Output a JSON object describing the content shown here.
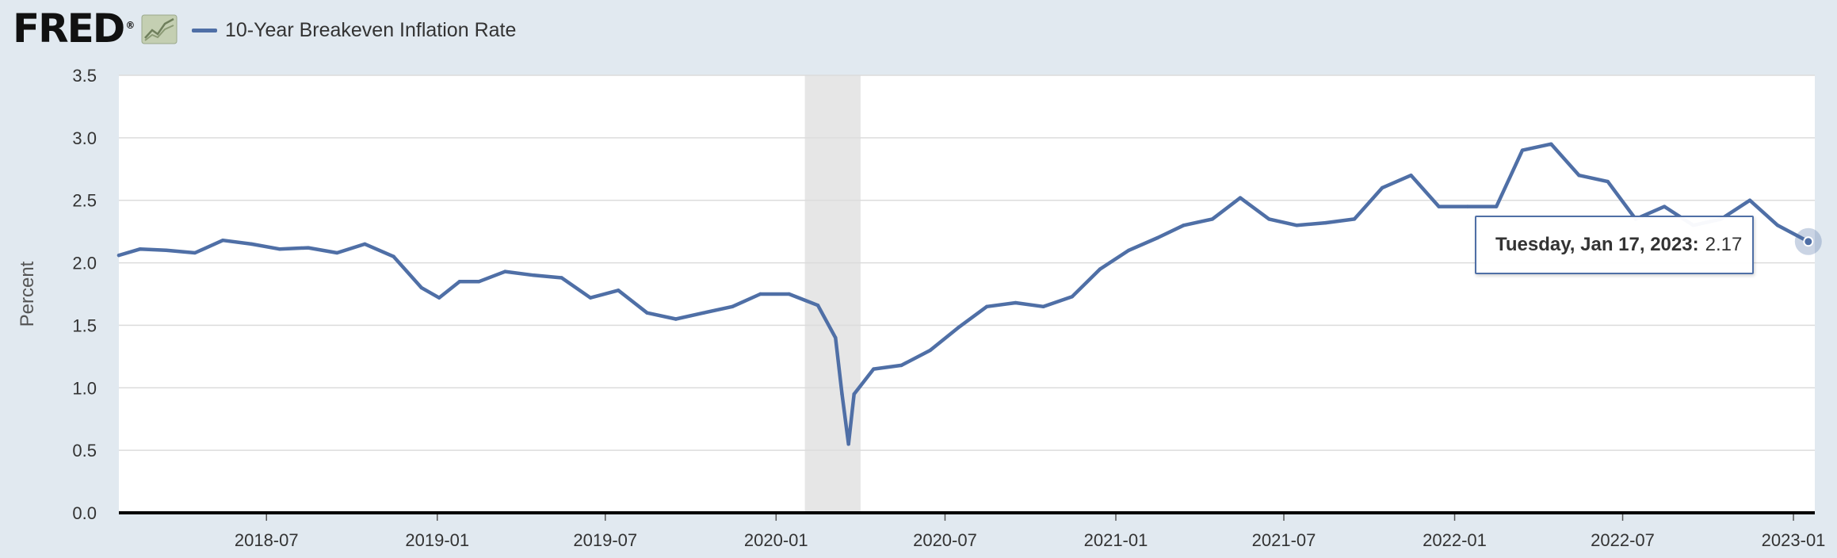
{
  "header": {
    "logo_text": "FRED",
    "logo_reg": "®",
    "logo_icon": "line-chart-icon"
  },
  "legend": {
    "label": "10-Year Breakeven Inflation Rate",
    "color": "#4f6fa6"
  },
  "tooltip": {
    "date": "Tuesday, Jan 17, 2023:",
    "value": "2.17"
  },
  "chart_data": {
    "type": "line",
    "ylabel": "Percent",
    "ylim": [
      0.0,
      3.5
    ],
    "yticks": [
      "0.0",
      "0.5",
      "1.0",
      "1.5",
      "2.0",
      "2.5",
      "3.0",
      "3.5"
    ],
    "xlim": [
      "2018-01-23",
      "2023-01-24"
    ],
    "xticks": [
      "2018-07",
      "2019-01",
      "2019-07",
      "2020-01",
      "2020-07",
      "2021-01",
      "2021-07",
      "2022-01",
      "2022-07",
      "2023-01"
    ],
    "grid": true,
    "recession_shading": [
      "2020-02",
      "2020-04"
    ],
    "series": [
      {
        "name": "10-Year Breakeven Inflation Rate",
        "color": "#4f6fa6",
        "x": [
          "2018-01-23",
          "2018-02-15",
          "2018-03-15",
          "2018-04-15",
          "2018-05-15",
          "2018-06-15",
          "2018-07-15",
          "2018-08-15",
          "2018-09-15",
          "2018-10-15",
          "2018-11-15",
          "2018-12-15",
          "2019-01-03",
          "2019-01-25",
          "2019-02-15",
          "2019-03-15",
          "2019-04-15",
          "2019-05-15",
          "2019-06-15",
          "2019-07-15",
          "2019-08-15",
          "2019-09-15",
          "2019-10-15",
          "2019-11-15",
          "2019-12-15",
          "2020-01-15",
          "2020-02-15",
          "2020-03-05",
          "2020-03-12",
          "2020-03-19",
          "2020-03-25",
          "2020-04-15",
          "2020-05-15",
          "2020-06-15",
          "2020-07-15",
          "2020-08-15",
          "2020-09-15",
          "2020-10-15",
          "2020-11-15",
          "2020-12-15",
          "2021-01-15",
          "2021-02-15",
          "2021-03-15",
          "2021-04-15",
          "2021-05-15",
          "2021-06-15",
          "2021-07-15",
          "2021-08-15",
          "2021-09-15",
          "2021-10-15",
          "2021-11-15",
          "2021-12-15",
          "2022-01-15",
          "2022-02-15",
          "2022-03-15",
          "2022-04-15",
          "2022-05-15",
          "2022-06-15",
          "2022-07-15",
          "2022-08-15",
          "2022-09-15",
          "2022-10-15",
          "2022-11-15",
          "2022-12-15",
          "2023-01-17"
        ],
        "values": [
          2.06,
          2.11,
          2.1,
          2.08,
          2.18,
          2.15,
          2.11,
          2.12,
          2.08,
          2.15,
          2.05,
          1.8,
          1.72,
          1.85,
          1.85,
          1.93,
          1.9,
          1.88,
          1.72,
          1.78,
          1.6,
          1.55,
          1.6,
          1.65,
          1.75,
          1.75,
          1.66,
          1.4,
          0.95,
          0.55,
          0.95,
          1.15,
          1.18,
          1.3,
          1.48,
          1.65,
          1.68,
          1.65,
          1.73,
          1.95,
          2.1,
          2.2,
          2.3,
          2.35,
          2.52,
          2.35,
          2.3,
          2.32,
          2.35,
          2.6,
          2.7,
          2.45,
          2.45,
          2.45,
          2.9,
          2.95,
          2.7,
          2.65,
          2.35,
          2.45,
          2.3,
          2.35,
          2.5,
          2.3,
          2.17
        ]
      }
    ]
  }
}
